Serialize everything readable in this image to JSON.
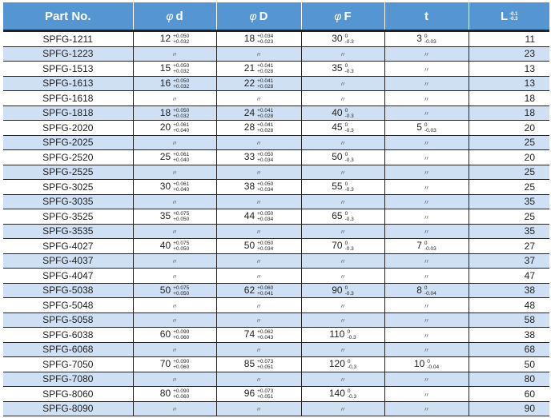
{
  "colors": {
    "header": "#5596d2",
    "alt_row": "#cfe0f5"
  },
  "headers": {
    "part": "Part No.",
    "phi": "φ",
    "d": "d",
    "D": "D",
    "F": "F",
    "t": "t",
    "L": "L",
    "L_upper": "-0.1",
    "L_lower": "-0.3"
  },
  "ditto": "〃",
  "rows": [
    {
      "part": "SPFG-1211",
      "d": [
        "12",
        "+0.050",
        "+0.032"
      ],
      "D": [
        "18",
        "+0.034",
        "+0.023"
      ],
      "F": [
        "30",
        "0",
        "-0.3"
      ],
      "t": [
        "3",
        "0",
        "-0.03"
      ],
      "L": "11"
    },
    {
      "part": "SPFG-1223",
      "d": null,
      "D": null,
      "F": null,
      "t": null,
      "L": "23"
    },
    {
      "part": "SPFG-1513",
      "d": [
        "15",
        "+0.050",
        "+0.032"
      ],
      "D": [
        "21",
        "+0.041",
        "+0.028"
      ],
      "F": [
        "35",
        "0",
        "-0.3"
      ],
      "t": null,
      "L": "13"
    },
    {
      "part": "SPFG-1613",
      "d": [
        "16",
        "+0.050",
        "+0.032"
      ],
      "D": [
        "22",
        "+0.041",
        "+0.028"
      ],
      "F": null,
      "t": null,
      "L": "13"
    },
    {
      "part": "SPFG-1618",
      "d": null,
      "D": null,
      "F": null,
      "t": null,
      "L": "18"
    },
    {
      "part": "SPFG-1818",
      "d": [
        "18",
        "+0.050",
        "+0.032"
      ],
      "D": [
        "24",
        "+0.041",
        "+0.028"
      ],
      "F": [
        "40",
        "0",
        "-0.3"
      ],
      "t": null,
      "L": "18"
    },
    {
      "part": "SPFG-2020",
      "d": [
        "20",
        "+0.061",
        "+0.040"
      ],
      "D": [
        "28",
        "+0.041",
        "+0.028"
      ],
      "F": [
        "45",
        "0",
        "-0.3"
      ],
      "t": [
        "5",
        "0",
        "-0.03"
      ],
      "L": "20"
    },
    {
      "part": "SPFG-2025",
      "d": null,
      "D": null,
      "F": null,
      "t": null,
      "L": "25"
    },
    {
      "part": "SPFG-2520",
      "d": [
        "25",
        "+0.061",
        "+0.040"
      ],
      "D": [
        "33",
        "+0.050",
        "+0.034"
      ],
      "F": [
        "50",
        "0",
        "-0.3"
      ],
      "t": null,
      "L": "20"
    },
    {
      "part": "SPFG-2525",
      "d": null,
      "D": null,
      "F": null,
      "t": null,
      "L": "25"
    },
    {
      "part": "SPFG-3025",
      "d": [
        "30",
        "+0.061",
        "+0.040"
      ],
      "D": [
        "38",
        "+0.050",
        "+0.034"
      ],
      "F": [
        "55",
        "0",
        "-0.3"
      ],
      "t": null,
      "L": "25"
    },
    {
      "part": "SPFG-3035",
      "d": null,
      "D": null,
      "F": null,
      "t": null,
      "L": "35"
    },
    {
      "part": "SPFG-3525",
      "d": [
        "35",
        "+0.075",
        "+0.050"
      ],
      "D": [
        "44",
        "+0.050",
        "+0.034"
      ],
      "F": [
        "65",
        "0",
        "-0.3"
      ],
      "t": null,
      "L": "25"
    },
    {
      "part": "SPFG-3535",
      "d": null,
      "D": null,
      "F": null,
      "t": null,
      "L": "35"
    },
    {
      "part": "SPFG-4027",
      "d": [
        "40",
        "+0.075",
        "+0.050"
      ],
      "D": [
        "50",
        "+0.050",
        "+0.034"
      ],
      "F": [
        "70",
        "0",
        "-0.3"
      ],
      "t": [
        "7",
        "0",
        "-0.03"
      ],
      "L": "27"
    },
    {
      "part": "SPFG-4037",
      "d": null,
      "D": null,
      "F": null,
      "t": null,
      "L": "37"
    },
    {
      "part": "SPFG-4047",
      "d": null,
      "D": null,
      "F": null,
      "t": null,
      "L": "47"
    },
    {
      "part": "SPFG-5038",
      "d": [
        "50",
        "+0.075",
        "+0.050"
      ],
      "D": [
        "62",
        "+0.060",
        "+0.041"
      ],
      "F": [
        "90",
        "0",
        "-0.3"
      ],
      "t": [
        "8",
        "0",
        "-0.04"
      ],
      "L": "38"
    },
    {
      "part": "SPFG-5048",
      "d": null,
      "D": null,
      "F": null,
      "t": null,
      "L": "48"
    },
    {
      "part": "SPFG-5058",
      "d": null,
      "D": null,
      "F": null,
      "t": null,
      "L": "58"
    },
    {
      "part": "SPFG-6038",
      "d": [
        "60",
        "+0.090",
        "+0.060"
      ],
      "D": [
        "74",
        "+0.062",
        "+0.043"
      ],
      "F": [
        "110",
        "0",
        "-0.3"
      ],
      "t": null,
      "L": "38"
    },
    {
      "part": "SPFG-6068",
      "d": null,
      "D": null,
      "F": null,
      "t": null,
      "L": "68"
    },
    {
      "part": "SPFG-7050",
      "d": [
        "70",
        "+0.090",
        "+0.060"
      ],
      "D": [
        "85",
        "+0.073",
        "+0.051"
      ],
      "F": [
        "120",
        "0",
        "-0.3"
      ],
      "t": [
        "10",
        "0",
        "-0.04"
      ],
      "L": "50"
    },
    {
      "part": "SPFG-7080",
      "d": null,
      "D": null,
      "F": null,
      "t": null,
      "L": "80"
    },
    {
      "part": "SPFG-8060",
      "d": [
        "80",
        "+0.090",
        "+0.060"
      ],
      "D": [
        "96",
        "+0.073",
        "+0.051"
      ],
      "F": [
        "140",
        "0",
        "-0.3"
      ],
      "t": null,
      "L": "60"
    },
    {
      "part": "SPFG-8090",
      "d": null,
      "D": null,
      "F": null,
      "t": null,
      "L": "90"
    }
  ]
}
